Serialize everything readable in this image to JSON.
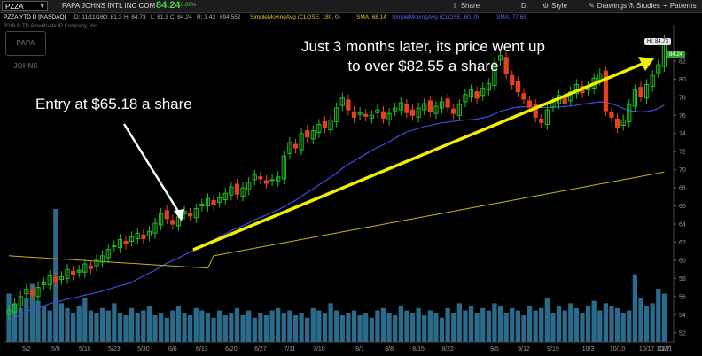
{
  "toolbar": {
    "symbol": "PZZA",
    "company": "PAPA JOHNS INTL INC COM",
    "last_price": "84.24",
    "change_pct": "0.00%",
    "share_label": "Share",
    "timeframe_label": "D",
    "style_label": "Style",
    "drawings_label": "Drawings",
    "studies_label": "Studies",
    "patterns_label": "Patterns"
  },
  "status": {
    "chart_name": "PZZA YTD D [NASDAQ]",
    "date": "D: 11/11/16",
    "open": "O: 81.3",
    "high": "H: 84.73",
    "low": "L: 81.3",
    "close": "C: 84.24",
    "range": "R: 3.43",
    "volume": "694,552",
    "sma180_name": "SimpleMovingAvg (CLOSE, 180, 0)",
    "sma180_value": "SMA: 68.14",
    "sma60_name": "SimpleMovingAvg (CLOSE, 60, 0)",
    "sma60_value": "SMA: 77.65"
  },
  "copyright": "2016 © TD Ameritrade IP Company, Inc.",
  "logo_text": "PAPA JOHNS",
  "annotations": {
    "entry": "Entry at $65.18 a share",
    "later_line1": "Just 3 months later, its price went up",
    "later_line2": "to over $82.55 a share"
  },
  "hi_tag": "Hi: 84.73",
  "last_tag": "84.24",
  "colors": {
    "up": "#1fbf1f",
    "down": "#e8401a",
    "volume": "#2a6a8a",
    "sma60": "#3c4ce0",
    "sma180": "#c8b020",
    "arrow": "#f0f000"
  },
  "chart_data": {
    "type": "candlestick",
    "x_ticks": [
      "5/2",
      "5/9",
      "5/16",
      "5/23",
      "5/30",
      "6/6",
      "6/13",
      "6/20",
      "6/27",
      "7/11",
      "7/18",
      "8/1",
      "8/8",
      "8/15",
      "8/22",
      "9/5",
      "9/12",
      "9/19",
      "10/3",
      "10/10",
      "10/17",
      "10/31",
      "11/7"
    ],
    "y_ticks": [
      52,
      54,
      56,
      58,
      60,
      62,
      64,
      66,
      68,
      70,
      72,
      74,
      76,
      78,
      80,
      82
    ],
    "ylim": [
      51,
      86
    ],
    "closes": [
      54.5,
      55.2,
      56.0,
      56.8,
      56.2,
      57.0,
      57.5,
      58.3,
      57.6,
      58.2,
      59.0,
      58.4,
      58.9,
      59.6,
      59.1,
      60.0,
      60.5,
      61.2,
      61.6,
      62.3,
      61.8,
      62.6,
      63.0,
      62.4,
      63.2,
      64.1,
      65.18,
      64.6,
      64.0,
      64.8,
      65.4,
      64.9,
      65.7,
      66.2,
      66.8,
      66.1,
      66.9,
      67.4,
      68.1,
      67.3,
      68.0,
      68.6,
      69.4,
      69.0,
      68.5,
      68.9,
      69.2,
      71.5,
      73.0,
      72.4,
      74.0,
      73.6,
      74.3,
      75.0,
      74.6,
      75.5,
      76.8,
      77.9,
      76.6,
      75.8,
      76.3,
      75.9,
      76.0,
      76.6,
      75.7,
      76.2,
      76.8,
      77.4,
      76.3,
      76.0,
      76.8,
      77.3,
      76.4,
      77.0,
      77.5,
      76.9,
      76.2,
      77.2,
      78.3,
      78.8,
      77.9,
      79.0,
      79.5,
      81.8,
      82.6,
      80.6,
      79.4,
      78.6,
      77.8,
      76.9,
      75.8,
      75.2,
      76.6,
      77.5,
      78.2,
      77.3,
      78.6,
      79.4,
      78.5,
      79.2,
      80.1,
      80.6,
      76.5,
      75.8,
      74.6,
      75.5,
      77.2,
      78.8,
      78.1,
      79.4,
      80.4,
      81.6,
      84.24
    ],
    "volume": [
      2.0,
      1.6,
      1.4,
      1.8,
      2.4,
      1.7,
      1.5,
      1.3,
      5.5,
      1.6,
      1.4,
      1.2,
      1.5,
      1.8,
      1.3,
      1.2,
      1.4,
      1.3,
      1.6,
      1.2,
      1.1,
      1.4,
      1.2,
      1.3,
      1.5,
      1.1,
      1.2,
      1.0,
      1.3,
      1.5,
      1.2,
      1.1,
      1.4,
      1.3,
      1.2,
      1.0,
      1.3,
      1.1,
      1.2,
      1.4,
      1.1,
      1.3,
      1.0,
      1.2,
      1.1,
      1.3,
      1.4,
      1.2,
      1.3,
      1.1,
      1.2,
      1.0,
      1.4,
      1.3,
      1.2,
      1.6,
      1.3,
      1.1,
      1.2,
      1.3,
      1.1,
      1.2,
      1.0,
      1.3,
      1.4,
      1.2,
      1.1,
      1.5,
      1.3,
      1.2,
      1.4,
      1.1,
      1.3,
      1.2,
      1.0,
      1.4,
      1.2,
      1.6,
      1.3,
      1.5,
      1.2,
      1.4,
      1.3,
      1.6,
      1.5,
      1.2,
      1.4,
      1.3,
      1.1,
      1.5,
      1.3,
      1.4,
      1.8,
      1.2,
      1.5,
      1.3,
      1.6,
      1.4,
      1.2,
      1.5,
      1.7,
      1.3,
      1.6,
      1.5,
      1.4,
      1.2,
      1.3,
      2.8,
      1.8,
      1.5,
      1.6,
      2.2,
      2.0
    ]
  }
}
